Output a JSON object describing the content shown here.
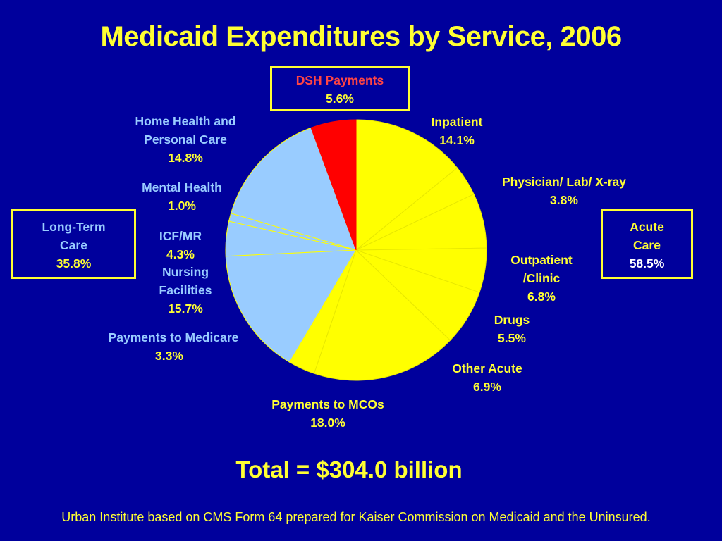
{
  "chart_data": {
    "type": "pie",
    "title": "Medicaid Expenditures by Service, 2006",
    "slices": [
      {
        "name": "Inpatient",
        "value": 14.1,
        "value_label": "14.1%",
        "group": "Acute Care",
        "color": "#ffff00"
      },
      {
        "name": "Physician/ Lab/ X-ray",
        "value": 3.8,
        "value_label": "3.8%",
        "group": "Acute Care",
        "color": "#ffff00"
      },
      {
        "name": "Outpatient /Clinic",
        "value": 6.8,
        "value_label": "6.8%",
        "group": "Acute Care",
        "color": "#ffff00"
      },
      {
        "name": "Drugs",
        "value": 5.5,
        "value_label": "5.5%",
        "group": "Acute Care",
        "color": "#ffff00"
      },
      {
        "name": "Other Acute",
        "value": 6.9,
        "value_label": "6.9%",
        "group": "Acute Care",
        "color": "#ffff00"
      },
      {
        "name": "Payments to MCOs",
        "value": 18.0,
        "value_label": "18.0%",
        "group": "Acute Care",
        "color": "#ffff00"
      },
      {
        "name": "Payments to Medicare",
        "value": 3.3,
        "value_label": "3.3%",
        "group": "Acute Care",
        "color": "#ffff00"
      },
      {
        "name": "Nursing Facilities",
        "value": 15.7,
        "value_label": "15.7%",
        "group": "Long-Term Care",
        "color": "#99ccff"
      },
      {
        "name": "ICF/MR",
        "value": 4.3,
        "value_label": "4.3%",
        "group": "Long-Term Care",
        "color": "#99ccff"
      },
      {
        "name": "Mental Health",
        "value": 1.0,
        "value_label": "1.0%",
        "group": "Long-Term Care",
        "color": "#99ccff"
      },
      {
        "name": "Home Health and Personal Care",
        "value": 14.8,
        "value_label": "14.8%",
        "group": "Long-Term Care",
        "color": "#99ccff"
      },
      {
        "name": "DSH Payments",
        "value": 5.6,
        "value_label": "5.6%",
        "group": "DSH",
        "color": "#ff0000"
      }
    ],
    "groups": [
      {
        "name": "Long-Term Care",
        "name_line1": "Long-Term",
        "name_line2": "Care",
        "value_label": "35.8%"
      },
      {
        "name": "Acute Care",
        "name_line1": "Acute",
        "name_line2": "Care",
        "value_label": "58.5%"
      }
    ],
    "labels_text": {
      "inpatient": "Inpatient",
      "physician": "Physician/ Lab/ X-ray",
      "outpatient_1": "Outpatient",
      "outpatient_2": "/Clinic",
      "drugs": "Drugs",
      "other_acute": "Other Acute",
      "mcos": "Payments to MCOs",
      "medicare": "Payments to Medicare",
      "nursing_1": "Nursing",
      "nursing_2": "Facilities",
      "icfmr": "ICF/MR",
      "mental": "Mental Health",
      "home_1": "Home Health and",
      "home_2": "Personal Care",
      "dsh": "DSH Payments"
    },
    "total": "Total = $304.0 billion",
    "source": "Urban Institute based on CMS Form 64 prepared for Kaiser Commission on Medicaid and the Uninsured."
  }
}
